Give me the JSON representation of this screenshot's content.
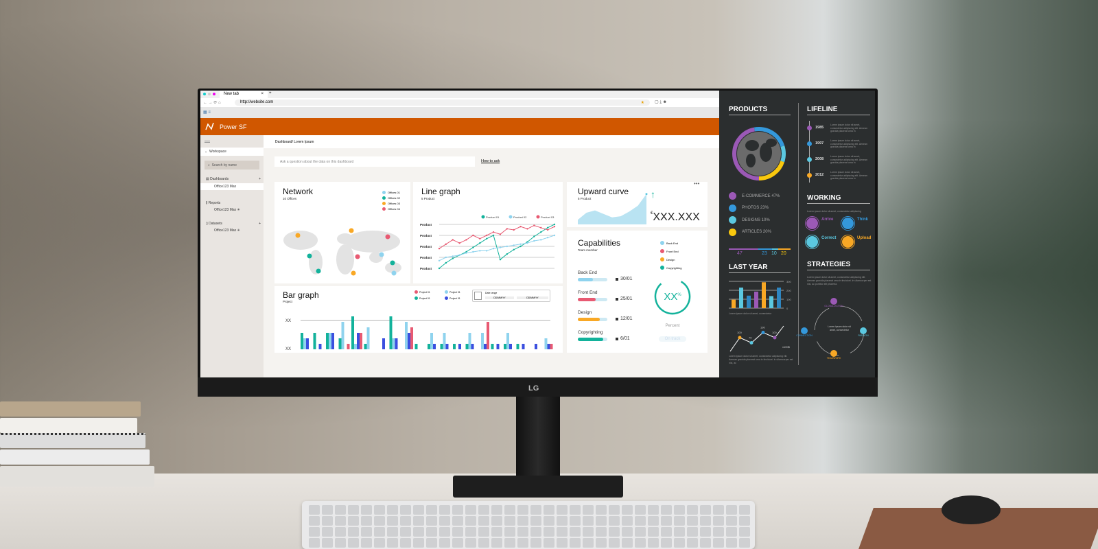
{
  "monitor": {
    "brand": "LG"
  },
  "browser": {
    "tab_title": "New tab",
    "url": "http://website.com"
  },
  "app": {
    "name": "Power SF",
    "breadcrumb": "Dashboard/ Lorem Ipsum",
    "ask_placeholder": "Ask a question about the data on this dashboard",
    "how_to_ask": "How to ask"
  },
  "sidebar": {
    "workspace": "Workspace",
    "search_placeholder": "Search by name",
    "sections": [
      {
        "label": "Dashboards",
        "item": "Office123 Max"
      },
      {
        "label": "Reports",
        "item": "Office123 Max ✳"
      },
      {
        "label": "Datasets",
        "item": "Office123 Max ✳"
      }
    ]
  },
  "network": {
    "title": "Network",
    "subtitle": "10 Offices",
    "legend": [
      "Offices 01",
      "Offices 02",
      "Offices 03",
      "Offices 04"
    ],
    "colors": [
      "#8fd3ee",
      "#13b29b",
      "#f9a825",
      "#e85a72"
    ]
  },
  "colors": {
    "accent": "#d05700",
    "teal": "#13b29b",
    "lightblue": "#8fd3ee",
    "pink": "#e85a72",
    "blue": "#3b4fdf",
    "yellow": "#f9a825",
    "purple": "#9b59b6",
    "dark_panel": "#2b2e2f"
  },
  "chart_data": [
    {
      "type": "line",
      "title": "Line graph",
      "subtitle": "5 Product",
      "ytick_labels": [
        "Product",
        "Product",
        "Product",
        "Product",
        "Product"
      ],
      "ylim": [
        0,
        4
      ],
      "series": [
        {
          "name": "Product 01",
          "color": "#13b29b",
          "values": [
            0,
            0.5,
            0.9,
            1.2,
            1.5,
            1.9,
            2.3,
            2.7,
            3,
            0.8,
            1.3,
            1.7,
            2,
            2.4,
            2.9,
            3.3,
            3.7,
            4
          ]
        },
        {
          "name": "Product 02",
          "color": "#8fd3ee",
          "values": [
            0.7,
            1,
            1.1,
            1.2,
            1.4,
            1.5,
            1.6,
            1.6,
            1.8,
            1.9,
            2,
            2.1,
            2.2,
            2.3,
            2.5,
            2.6,
            2.8,
            3
          ]
        },
        {
          "name": "Product 03",
          "color": "#e85a72",
          "values": [
            1.8,
            2.2,
            2.6,
            2.3,
            2.6,
            3,
            2.7,
            3,
            3.3,
            3.1,
            3.6,
            3.5,
            3.8,
            3.6,
            3.9,
            3.7,
            3.5,
            3.8
          ]
        }
      ]
    },
    {
      "type": "bar",
      "title": "Bar graph",
      "subtitle": "Project",
      "ytick_labels": [
        "XX",
        "XX"
      ],
      "date_range": {
        "label": "Date range",
        "from": "DD/MM/YY",
        "to": "DD/MM/YY"
      },
      "series": [
        {
          "name": "Project 01",
          "color": "#8fd3ee",
          "values": [
            2,
            0,
            3,
            5,
            1,
            4,
            0,
            2,
            5,
            0,
            3,
            3,
            0,
            3,
            3,
            0,
            3,
            0,
            0,
            2
          ]
        },
        {
          "name": "Project 01",
          "color": "#e85a72",
          "values": [
            0,
            0,
            0,
            1,
            3,
            0,
            0,
            0,
            4,
            0,
            0,
            0,
            0,
            0,
            5,
            0,
            0,
            0,
            0,
            1
          ]
        },
        {
          "name": "Project 01",
          "color": "#3b4fdf",
          "values": [
            2,
            1,
            3,
            0,
            3,
            0,
            2,
            2,
            3,
            0,
            1,
            1,
            1,
            1,
            1,
            1,
            1,
            1,
            1,
            1
          ]
        },
        {
          "name": "Project 01",
          "color": "#13b29b",
          "values": [
            3,
            3,
            3,
            2,
            6,
            1,
            0,
            6,
            0,
            1,
            1,
            1,
            1,
            1,
            0,
            1,
            1,
            1,
            0,
            0
          ]
        }
      ]
    },
    {
      "type": "area",
      "title": "Upward curve",
      "subtitle": "5 Product",
      "value": "XXX.XXX",
      "values": [
        0.2,
        0.5,
        0.6,
        0.45,
        0.3,
        0.35,
        0.55,
        0.8,
        1.3
      ]
    },
    {
      "type": "bar",
      "title": "LAST YEAR",
      "yticks": [
        300,
        200,
        100,
        0
      ],
      "ylim": [
        0,
        300
      ],
      "values": [
        95,
        230,
        140,
        185,
        290,
        135,
        230
      ],
      "colors": [
        "#f9a825",
        "#5bc8e0",
        "#2e86c1",
        "#9b59b6",
        "#f9a825",
        "#5bc8e0",
        "#2e86c1"
      ]
    },
    {
      "type": "line",
      "labels": [
        "100",
        "70",
        "130",
        "100"
      ],
      "values": [
        100,
        70,
        130,
        100
      ],
      "unit": "x100$"
    },
    {
      "type": "pie",
      "title": "PRODUCTS",
      "slices": [
        {
          "label": "E-COMMERCE 47%",
          "value": 47,
          "color": "#9b59b6"
        },
        {
          "label": "PHOTOS 23%",
          "value": 23,
          "color": "#3498db"
        },
        {
          "label": "DESIGNS 10%",
          "value": 10,
          "color": "#5bc8e0"
        },
        {
          "label": "ARTICLES 20%",
          "value": 20,
          "color": "#f9c80e"
        }
      ],
      "totals": [
        "47",
        "23",
        "10",
        "20"
      ]
    }
  ],
  "capabilities": {
    "title": "Capabilities",
    "subtitle": "Team member",
    "legend": [
      "Back End",
      "Front End",
      "Design",
      "Copyrighting"
    ],
    "bars": [
      {
        "label": "Back End",
        "date": "30/01",
        "progress": 0.5,
        "color": "#8fd3ee"
      },
      {
        "label": "Front End",
        "date": "25/01",
        "progress": 0.6,
        "color": "#e85a72"
      },
      {
        "label": "Design",
        "date": "12/01",
        "progress": 0.75,
        "color": "#f9a825"
      },
      {
        "label": "Copyrighting",
        "date": "6/01",
        "progress": 0.85,
        "color": "#13b29b"
      }
    ],
    "gauge": {
      "value": "XX",
      "unit": "%",
      "label": "Percent",
      "status": "On track",
      "progress": 0.8
    }
  },
  "infographic": {
    "lifeline": {
      "title": "LIFELINE",
      "years": [
        "1985",
        "1997",
        "2008",
        "2012"
      ],
      "colors": [
        "#9b59b6",
        "#3498db",
        "#5bc8e0",
        "#f9a825"
      ],
      "text": "Lorem ipsum dolor sit amet, consectetur adipiscing elit. Aenean gravida placerat urna in"
    },
    "working": {
      "title": "WORKING",
      "intro": "Lorem ipsum dolor sit amet, consectetur adipiscing",
      "items": [
        {
          "label": "Arrive",
          "color": "#9b59b6"
        },
        {
          "label": "Think",
          "color": "#3498db"
        },
        {
          "label": "Correct",
          "color": "#5bc8e0"
        },
        {
          "label": "Upload",
          "color": "#f9a825"
        }
      ]
    },
    "last_year_caption": "Lorem ipsum dolor sit amet, consectetur",
    "line_caption": "Lorem ipsum dolor sit amet, consectetur adipiscing elit. Aenean gravida placerat urna in tincidunt. In ullamcorper est nisi, ac",
    "strategies": {
      "title": "STRATEGIES",
      "intro": "Lorem ipsum dolor sit amet, consectetur adipiscing elit. Aenean gravida placerat urna in tincidunt. In ullamcorper est nisi, ac porttitor elit pharetra.",
      "center": "Lorem ipsum dolor sit amet, consectetur",
      "nodes": [
        "GLOBALIZATION",
        "CONNECTION",
        "PASSION",
        "TEAMWORK"
      ]
    }
  }
}
